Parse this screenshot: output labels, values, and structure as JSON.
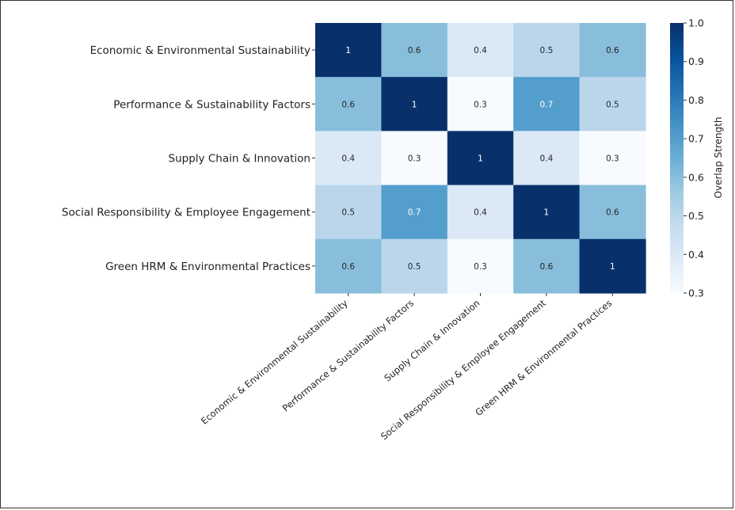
{
  "chart_data": {
    "type": "heatmap",
    "title": "",
    "row_labels": [
      "Economic & Environmental Sustainability",
      "Performance & Sustainability Factors",
      "Supply Chain & Innovation",
      "Social Responsibility & Employee Engagement",
      "Green HRM & Environmental Practices"
    ],
    "col_labels": [
      "Economic & Environmental Sustainability",
      "Performance & Sustainability Factors",
      "Supply Chain & Innovation",
      "Social Responsibility & Employee Engagement",
      "Green HRM & Environmental Practices"
    ],
    "values": [
      [
        1,
        0.6,
        0.4,
        0.5,
        0.6
      ],
      [
        0.6,
        1,
        0.3,
        0.7,
        0.5
      ],
      [
        0.4,
        0.3,
        1,
        0.4,
        0.3
      ],
      [
        0.5,
        0.7,
        0.4,
        1,
        0.6
      ],
      [
        0.6,
        0.5,
        0.3,
        0.6,
        1
      ]
    ],
    "colorscale": "Blues",
    "vmin": 0.3,
    "vmax": 1.0,
    "colorbar": {
      "label": "Overlap Strength",
      "ticks": [
        "0.3",
        "0.4",
        "0.5",
        "0.6",
        "0.7",
        "0.8",
        "0.9",
        "1.0"
      ]
    }
  }
}
